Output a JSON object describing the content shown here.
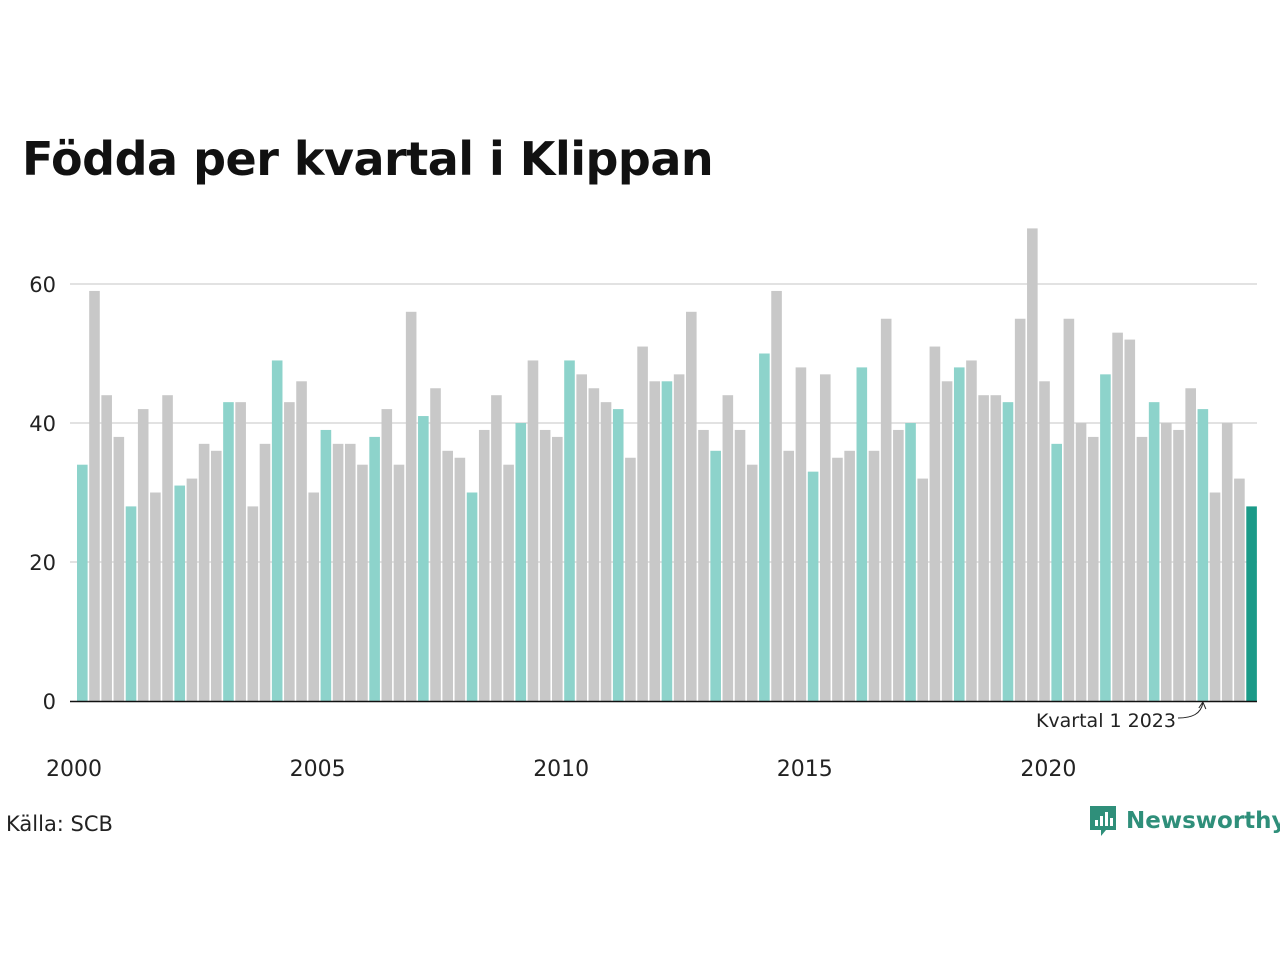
{
  "title": "Födda per kvartal i Klippan",
  "source": "Källa: SCB",
  "brand": "Newsworthy",
  "colors": {
    "q1": "#8dd3cb",
    "other": "#c8c8c8",
    "highlight": "#1a9a88",
    "grid": "#e2e2e2",
    "axis": "#111111",
    "brand": "#2f8f7a"
  },
  "chart_data": {
    "type": "bar",
    "title": "Födda per kvartal i Klippan",
    "xlabel": "",
    "ylabel": "",
    "ylim": [
      0,
      70
    ],
    "y_ticks": [
      0,
      20,
      40,
      60
    ],
    "x_tick_labels": [
      "2000",
      "2005",
      "2010",
      "2015",
      "2020"
    ],
    "grid": true,
    "first_quarter": "2000 Q1",
    "color_rule": "Q1 bars teal, other quarters grey, latest bar dark teal",
    "annotation": "Kvartal 1 2023",
    "values": [
      34,
      59,
      44,
      38,
      28,
      42,
      30,
      44,
      31,
      32,
      37,
      36,
      43,
      43,
      28,
      37,
      49,
      43,
      46,
      30,
      39,
      37,
      37,
      34,
      38,
      42,
      34,
      56,
      41,
      45,
      36,
      35,
      30,
      39,
      44,
      34,
      40,
      49,
      39,
      38,
      49,
      47,
      45,
      43,
      42,
      35,
      51,
      46,
      46,
      47,
      56,
      39,
      36,
      44,
      39,
      34,
      50,
      59,
      36,
      48,
      33,
      47,
      35,
      36,
      48,
      36,
      55,
      39,
      40,
      32,
      51,
      46,
      48,
      49,
      44,
      44,
      43,
      55,
      68,
      46,
      37,
      55,
      40,
      38,
      47,
      53,
      52,
      38,
      43,
      40,
      39,
      45,
      42,
      30,
      40,
      32,
      28
    ]
  }
}
